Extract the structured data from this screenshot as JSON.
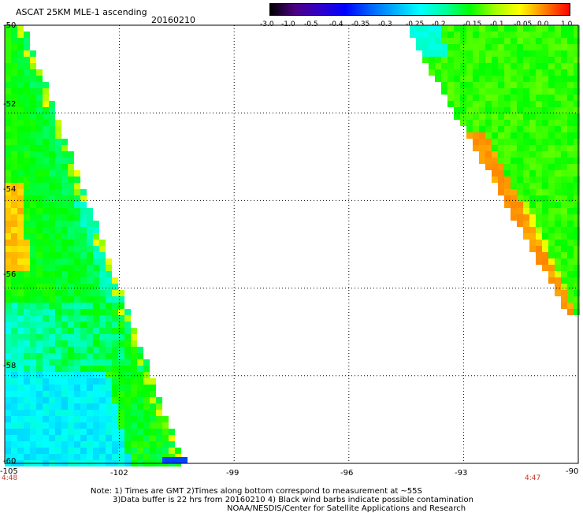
{
  "header": {
    "title": "ASCAT 25KM MLE-1 ascending",
    "date": "20160210"
  },
  "colorbar": {
    "labels": [
      "-3.0",
      "-1.0",
      "-0.5",
      "-0.4",
      "-0.35",
      "-0.3",
      "-0.25",
      "-0.2",
      "-0.15",
      "-0.1",
      "-0.05",
      "0.0",
      "1.0"
    ],
    "colors": [
      "#000000",
      "#4b0082",
      "#3000c8",
      "#0000ff",
      "#0060ff",
      "#00b0ff",
      "#00ffff",
      "#00ffa0",
      "#00ff00",
      "#a0ff00",
      "#ffff00",
      "#ff8000",
      "#ff0000"
    ]
  },
  "map": {
    "lat_labels": [
      "-50",
      "-52",
      "-54",
      "-56",
      "-58",
      "-60"
    ],
    "lon_labels": [
      "-105",
      "-102",
      "-99",
      "-96",
      "-93",
      "-90"
    ],
    "time_left": "4:48",
    "time_right": "4:47"
  },
  "footer": {
    "note1": "Note: 1) Times are GMT 2)Times along bottom correspond to measurement at ~55S",
    "note2": "3)Data buffer is 22 hrs from 20160210 4) Black wind barbs indicate possible contamination",
    "credit": "NOAA/NESDIS/Center for Satellite Applications and Research"
  }
}
